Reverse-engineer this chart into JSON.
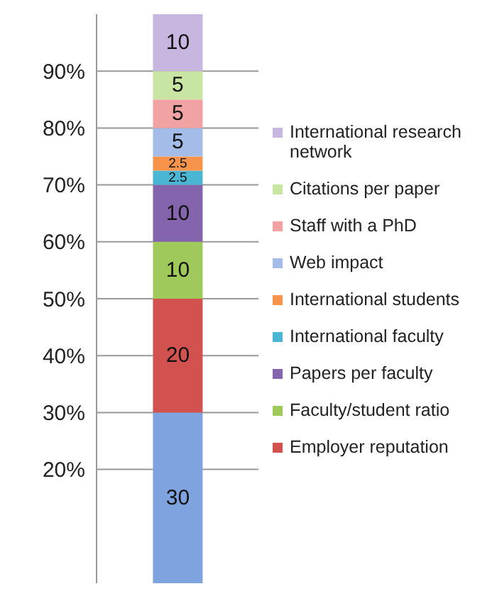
{
  "chart_data": {
    "type": "bar",
    "stacked": true,
    "categories": [
      null
    ],
    "series": [
      {
        "color": "#7ea3de",
        "values": [
          30
        ]
      },
      {
        "name": "Employer reputation",
        "color": "#d2524f",
        "values": [
          20
        ]
      },
      {
        "name": "Faculty/student ratio",
        "color": "#9fc95a",
        "values": [
          10
        ]
      },
      {
        "name": "Papers per faculty",
        "color": "#8465ad",
        "values": [
          10
        ]
      },
      {
        "name": "International faculty",
        "color": "#4bb6d3",
        "values": [
          2.5
        ]
      },
      {
        "name": "International students",
        "color": "#f7934a",
        "values": [
          2.5
        ]
      },
      {
        "name": "Web impact",
        "color": "#a4bde8",
        "values": [
          5
        ]
      },
      {
        "name": "Staff with a PhD",
        "color": "#f0a3a2",
        "values": [
          5
        ]
      },
      {
        "name": "Citations per paper",
        "color": "#c9e5a3",
        "values": [
          5
        ]
      },
      {
        "name": "International research network",
        "color": "#c6b6e0",
        "values": [
          10
        ]
      }
    ],
    "ylim": [
      0,
      100
    ],
    "yticks": [
      {
        "value": 20,
        "label": "20%"
      },
      {
        "value": 30,
        "label": "30%"
      },
      {
        "value": 40,
        "label": "40%"
      },
      {
        "value": 50,
        "label": "50%"
      },
      {
        "value": 60,
        "label": "60%"
      },
      {
        "value": 70,
        "label": "70%"
      },
      {
        "value": 80,
        "label": "80%"
      },
      {
        "value": 90,
        "label": "90%"
      }
    ],
    "grid": "y",
    "legend": "right",
    "data_labels": true
  }
}
